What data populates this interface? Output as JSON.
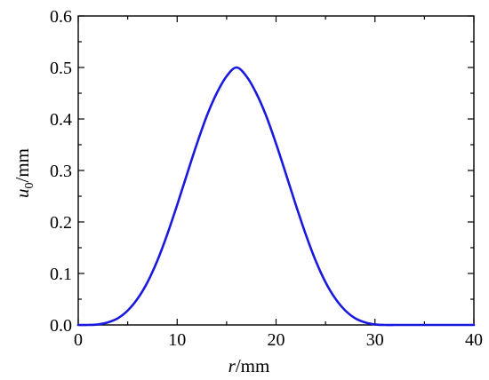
{
  "chart_data": {
    "type": "line",
    "xlim": [
      0,
      40
    ],
    "ylim": [
      0,
      0.6
    ],
    "x_ticks": [
      0,
      10,
      20,
      30,
      40
    ],
    "x_tick_labels": [
      "0",
      "10",
      "20",
      "30",
      "40"
    ],
    "y_ticks": [
      0,
      0.1,
      0.2,
      0.3,
      0.4,
      0.5,
      0.6
    ],
    "y_tick_labels": [
      "0.0",
      "0.1",
      "0.2",
      "0.3",
      "0.4",
      "0.5",
      "0.6"
    ],
    "xlabel_var": "r",
    "xlabel_unit": "/mm",
    "ylabel_var": "u",
    "ylabel_sub": "0",
    "ylabel_unit": "/mm",
    "grid": false,
    "legend": false,
    "series": [
      {
        "color": "#1a1adf",
        "x": [
          0,
          1,
          2,
          3,
          4,
          5,
          6,
          7,
          8,
          9,
          10,
          11,
          12,
          13,
          14,
          15,
          16,
          17,
          18,
          19,
          20,
          21,
          22,
          23,
          24,
          25,
          26,
          27,
          28,
          29,
          30,
          31,
          32,
          33,
          34,
          35,
          36,
          37,
          38,
          39,
          40
        ],
        "y": [
          0.0,
          0.0,
          0.001,
          0.005,
          0.013,
          0.028,
          0.051,
          0.083,
          0.125,
          0.176,
          0.233,
          0.293,
          0.352,
          0.406,
          0.45,
          0.483,
          0.5,
          0.483,
          0.45,
          0.406,
          0.352,
          0.293,
          0.233,
          0.176,
          0.125,
          0.083,
          0.051,
          0.028,
          0.013,
          0.005,
          0.001,
          0.0,
          0.0,
          0.0,
          0.0,
          0.0,
          0.0,
          0.0,
          0.0,
          0.0,
          0.0
        ]
      }
    ]
  }
}
